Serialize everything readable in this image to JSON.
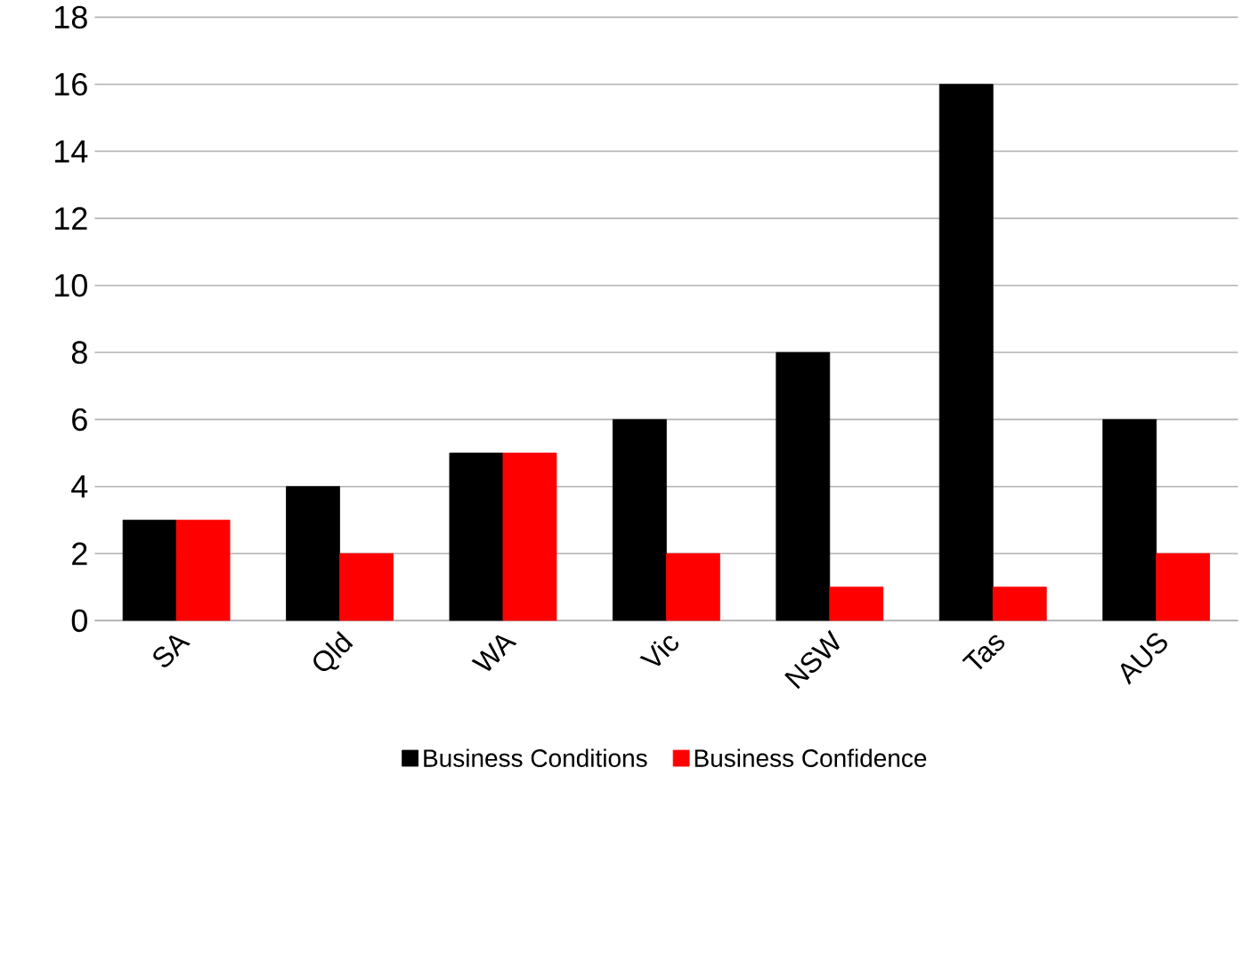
{
  "chart_data": {
    "type": "bar",
    "categories": [
      "SA",
      "Qld",
      "WA",
      "Vic",
      "NSW",
      "Tas",
      "AUS"
    ],
    "series": [
      {
        "name": "Business Conditions",
        "color": "#000000",
        "values": [
          3,
          4,
          5,
          6,
          8,
          16,
          6
        ]
      },
      {
        "name": "Business Confidence",
        "color": "#ff0000",
        "values": [
          3,
          2,
          5,
          2,
          1,
          1,
          2
        ]
      }
    ],
    "ylim": [
      0,
      18
    ],
    "yticks": [
      0,
      2,
      4,
      6,
      8,
      10,
      12,
      14,
      16,
      18
    ],
    "grid": "y",
    "legend": "bottom"
  }
}
